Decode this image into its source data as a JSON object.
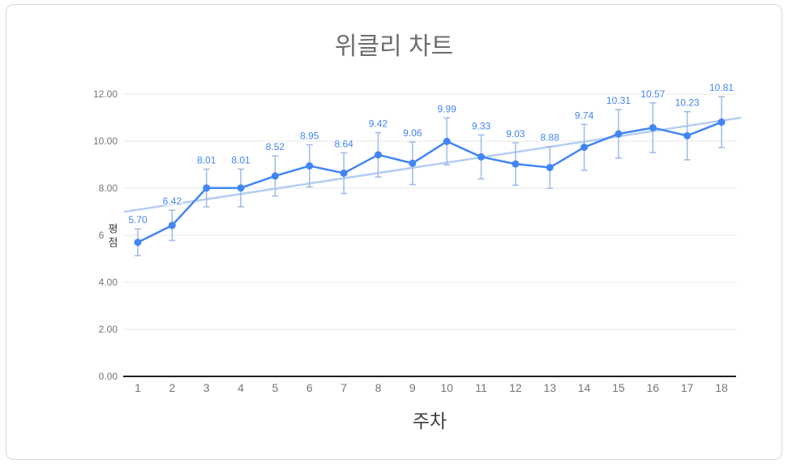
{
  "chart_data": {
    "type": "line",
    "title": "위클리 차트",
    "xlabel": "주차",
    "ylabel": "평점",
    "x": [
      1,
      2,
      3,
      4,
      5,
      6,
      7,
      8,
      9,
      10,
      11,
      12,
      13,
      14,
      15,
      16,
      17,
      18
    ],
    "series": [
      {
        "name": "평점",
        "values": [
          5.7,
          6.42,
          8.01,
          8.01,
          8.52,
          8.95,
          8.64,
          9.42,
          9.06,
          9.99,
          9.33,
          9.03,
          8.88,
          9.74,
          10.31,
          10.57,
          10.23,
          10.81
        ]
      }
    ],
    "point_labels": [
      "5.70",
      "6.42",
      "8.01",
      "8.01",
      "8.52",
      "8.95",
      "8.64",
      "9.42",
      "9.06",
      "9.99",
      "9.33",
      "9.03",
      "8.88",
      "9.74",
      "10.31",
      "10.57",
      "10.23",
      "10.81"
    ],
    "ylim": [
      0,
      12
    ],
    "yticks": [
      0,
      2,
      4,
      6,
      8,
      10,
      12
    ],
    "ytick_labels": [
      "0.00",
      "2.00",
      "4.00",
      "6.00",
      "8.00",
      "10.00",
      "12.00"
    ],
    "error_bars": {
      "type": "percent",
      "value": 10
    },
    "trendline": {
      "type": "linear"
    },
    "grid": "horizontal",
    "legend": "none",
    "colors": {
      "series": "#4285f4",
      "trendline": "#b5cdf2",
      "error_bar": "#9fb9e6",
      "grid": "#e9e9e9",
      "axis": "#212121",
      "tick_label": "#757575",
      "data_label": "#4285f4",
      "title": "#6d6d6d",
      "axis_title": "#3d3d3d"
    }
  }
}
